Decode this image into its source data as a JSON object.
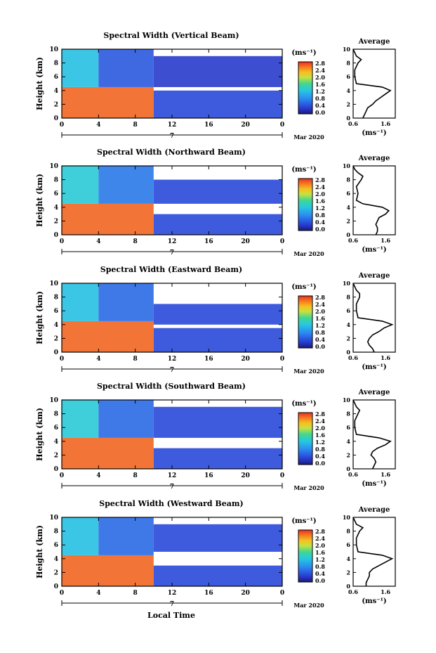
{
  "figure": {
    "xaxis_title": "Local Time",
    "date_label": "Mar 2020",
    "day_label": "7",
    "time_ticks": [
      "0",
      "4",
      "8",
      "12",
      "16",
      "20",
      "0"
    ],
    "height_ticks": [
      "0",
      "2",
      "4",
      "6",
      "8",
      "10"
    ],
    "height_label": "Height (km)",
    "colorbar_unit": "(ms⁻¹)",
    "colorbar_ticks": [
      "0.0",
      "0.4",
      "0.8",
      "1.2",
      "1.6",
      "2.0",
      "2.4",
      "2.8"
    ],
    "average_title": "Average",
    "average_ticks": [
      "0.6",
      "1.6"
    ],
    "average_unit": "(ms⁻¹)"
  },
  "chart_data": [
    {
      "type": "heatmap",
      "title": "Spectral Width (Vertical Beam)",
      "xlabel": "",
      "ylabel": "Height (km)",
      "x_range_hours": [
        0,
        24
      ],
      "ylim": [
        0,
        10
      ],
      "color_range": [
        0.0,
        2.8
      ],
      "regions": [
        {
          "t": [
            0,
            10
          ],
          "h": [
            0,
            4.5
          ],
          "value": 2.6
        },
        {
          "t": [
            0,
            4
          ],
          "h": [
            4.5,
            10
          ],
          "value": 1.2
        },
        {
          "t": [
            4,
            10
          ],
          "h": [
            4.5,
            10
          ],
          "value": 0.5
        },
        {
          "t": [
            10,
            24
          ],
          "h": [
            0,
            4
          ],
          "value": 0.4
        },
        {
          "t": [
            10,
            24
          ],
          "h": [
            4.5,
            9
          ],
          "value": 0.3
        }
      ],
      "average_profile": {
        "height": [
          0,
          0.5,
          1,
          1.5,
          2,
          2.5,
          3,
          3.5,
          4,
          4.5,
          5,
          6,
          7,
          8,
          8.5,
          9,
          9.5,
          10
        ],
        "value": [
          0.9,
          0.95,
          1.0,
          1.05,
          1.2,
          1.3,
          1.45,
          1.6,
          1.75,
          1.5,
          0.7,
          0.65,
          0.65,
          0.75,
          0.85,
          0.7,
          0.65,
          0.6
        ]
      }
    },
    {
      "type": "heatmap",
      "title": "Spectral Width (Northward Beam)",
      "xlabel": "",
      "ylabel": "Height (km)",
      "x_range_hours": [
        0,
        24
      ],
      "ylim": [
        0,
        10
      ],
      "color_range": [
        0.0,
        2.8
      ],
      "regions": [
        {
          "t": [
            0,
            10
          ],
          "h": [
            0,
            4.5
          ],
          "value": 2.6
        },
        {
          "t": [
            0,
            4
          ],
          "h": [
            4.5,
            10
          ],
          "value": 1.3
        },
        {
          "t": [
            4,
            10
          ],
          "h": [
            4.5,
            10
          ],
          "value": 0.7
        },
        {
          "t": [
            10,
            24
          ],
          "h": [
            0,
            3
          ],
          "value": 0.4
        },
        {
          "t": [
            10,
            24
          ],
          "h": [
            4.5,
            8
          ],
          "value": 0.4
        }
      ],
      "average_profile": {
        "height": [
          0,
          0.5,
          1,
          1.5,
          2,
          2.5,
          3,
          3.5,
          4,
          4.5,
          5,
          6,
          7,
          8,
          8.5,
          9,
          9.5,
          10
        ],
        "value": [
          1.3,
          1.35,
          1.35,
          1.3,
          1.35,
          1.4,
          1.6,
          1.7,
          1.5,
          0.9,
          0.7,
          0.75,
          0.7,
          0.85,
          0.9,
          0.75,
          0.65,
          0.6
        ]
      }
    },
    {
      "type": "heatmap",
      "title": "Spectral Width (Eastward Beam)",
      "xlabel": "",
      "ylabel": "Height (km)",
      "x_range_hours": [
        0,
        24
      ],
      "ylim": [
        0,
        10
      ],
      "color_range": [
        0.0,
        2.8
      ],
      "regions": [
        {
          "t": [
            0,
            10
          ],
          "h": [
            0,
            4.5
          ],
          "value": 2.6
        },
        {
          "t": [
            0,
            4
          ],
          "h": [
            4.5,
            10
          ],
          "value": 1.2
        },
        {
          "t": [
            4,
            10
          ],
          "h": [
            4.5,
            10
          ],
          "value": 0.6
        },
        {
          "t": [
            10,
            24
          ],
          "h": [
            0,
            3.5
          ],
          "value": 0.4
        },
        {
          "t": [
            10,
            24
          ],
          "h": [
            4,
            7
          ],
          "value": 0.4
        }
      ],
      "average_profile": {
        "height": [
          0,
          0.5,
          1,
          1.5,
          2,
          2.5,
          3,
          3.5,
          4,
          4.5,
          5,
          6,
          7,
          8,
          8.5,
          9,
          9.5,
          10
        ],
        "value": [
          1.25,
          1.2,
          1.1,
          1.05,
          1.1,
          1.2,
          1.4,
          1.55,
          1.8,
          1.5,
          0.75,
          0.7,
          0.7,
          0.8,
          0.8,
          0.7,
          0.65,
          0.6
        ]
      }
    },
    {
      "type": "heatmap",
      "title": "Spectral Width (Southward Beam)",
      "xlabel": "",
      "ylabel": "Height (km)",
      "x_range_hours": [
        0,
        24
      ],
      "ylim": [
        0,
        10
      ],
      "color_range": [
        0.0,
        2.8
      ],
      "regions": [
        {
          "t": [
            0,
            10
          ],
          "h": [
            0,
            4.5
          ],
          "value": 2.6
        },
        {
          "t": [
            0,
            4
          ],
          "h": [
            4.5,
            10
          ],
          "value": 1.3
        },
        {
          "t": [
            4,
            10
          ],
          "h": [
            4.5,
            10
          ],
          "value": 0.6
        },
        {
          "t": [
            10,
            24
          ],
          "h": [
            0,
            3
          ],
          "value": 0.4
        },
        {
          "t": [
            10,
            24
          ],
          "h": [
            4.5,
            9
          ],
          "value": 0.4
        }
      ],
      "average_profile": {
        "height": [
          0,
          0.5,
          1,
          1.5,
          2,
          2.5,
          3,
          3.5,
          4,
          4.5,
          5,
          6,
          7,
          8,
          8.5,
          9,
          9.5,
          10
        ],
        "value": [
          1.2,
          1.25,
          1.3,
          1.25,
          1.15,
          1.2,
          1.35,
          1.6,
          1.75,
          1.4,
          0.7,
          0.65,
          0.65,
          0.75,
          0.8,
          0.7,
          0.65,
          0.6
        ]
      }
    },
    {
      "type": "heatmap",
      "title": "Spectral Width (Westward Beam)",
      "xlabel": "Local Time",
      "ylabel": "Height (km)",
      "x_range_hours": [
        0,
        24
      ],
      "ylim": [
        0,
        10
      ],
      "color_range": [
        0.0,
        2.8
      ],
      "regions": [
        {
          "t": [
            0,
            10
          ],
          "h": [
            0,
            4.5
          ],
          "value": 2.6
        },
        {
          "t": [
            0,
            4
          ],
          "h": [
            4.5,
            10
          ],
          "value": 1.2
        },
        {
          "t": [
            4,
            10
          ],
          "h": [
            4.5,
            10
          ],
          "value": 0.6
        },
        {
          "t": [
            10,
            24
          ],
          "h": [
            0,
            3
          ],
          "value": 0.4
        },
        {
          "t": [
            10,
            24
          ],
          "h": [
            5,
            9
          ],
          "value": 0.4
        }
      ],
      "average_profile": {
        "height": [
          0,
          0.5,
          1,
          1.5,
          2,
          2.5,
          3,
          3.5,
          4,
          4.5,
          5,
          6,
          7,
          8,
          8.5,
          9,
          9.5,
          10
        ],
        "value": [
          1.0,
          1.0,
          1.05,
          1.1,
          1.1,
          1.2,
          1.4,
          1.6,
          1.8,
          1.5,
          0.75,
          0.7,
          0.7,
          0.8,
          0.9,
          0.7,
          0.65,
          0.6
        ]
      }
    }
  ]
}
